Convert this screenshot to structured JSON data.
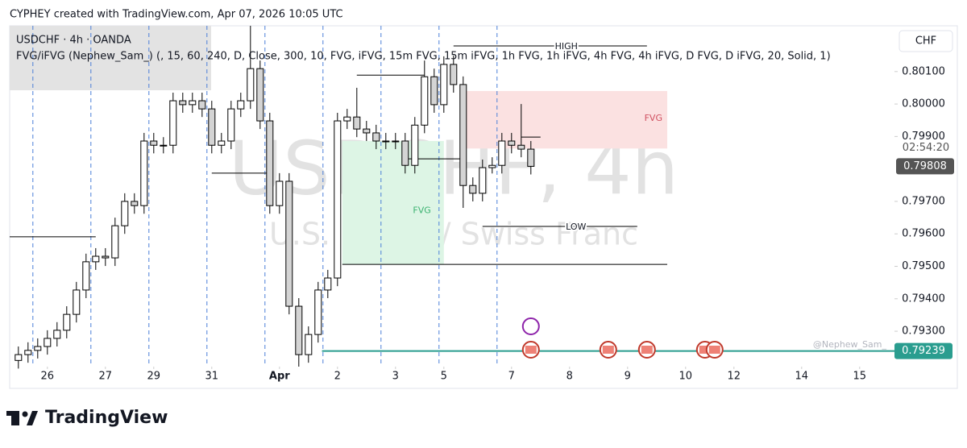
{
  "chart_data": {
    "type": "candlestick",
    "header": "CYPHEY created with TradingView.com, Apr 07, 2026 10:05 UTC",
    "title": "USDCHF · 4h · OANDA",
    "subtitle": "FVG/iFVG (Nephew_Sam_) (, 15, 60, 240, D, Close, 300, 10, FVG, iFVG, 15m FVG, 15m iFVG, 1h FVG, 1h iFVG, 4h FVG, 4h iFVG, D FVG, D iFVG, 20, Solid, 1)",
    "currency": "CHF",
    "watermark": "USDCHF, 4h",
    "watermark_subtitle": "U.S. Dollar / Swiss Franc",
    "credit": "@Nephew_Sam_",
    "logo": "TradingView",
    "up_color": "#ffffff",
    "down_color": "#d4d4d4",
    "x": [
      0,
      1,
      2,
      3,
      4,
      5,
      6,
      7,
      8,
      9,
      10,
      11,
      12,
      13,
      14,
      15,
      16,
      17,
      18,
      19,
      20,
      21,
      22,
      23,
      24,
      25,
      26,
      27,
      28,
      29,
      30,
      31,
      32,
      33,
      34,
      35,
      36,
      37,
      38,
      39,
      40,
      41,
      42,
      43,
      44,
      45,
      46,
      47,
      48,
      49,
      50,
      51,
      52,
      53
    ],
    "open": [
      0.7921,
      0.79228,
      0.79241,
      0.79253,
      0.79278,
      0.79303,
      0.79352,
      0.79427,
      0.79514,
      0.79531,
      0.79526,
      0.79625,
      0.797,
      0.79687,
      0.79886,
      0.79873,
      0.79873,
      0.8001,
      0.79998,
      0.8001,
      0.79985,
      0.79873,
      0.79886,
      0.79985,
      0.8001,
      0.80109,
      0.79948,
      0.79687,
      0.79762,
      0.79377,
      0.79228,
      0.7929,
      0.79427,
      0.79464,
      0.79948,
      0.7996,
      0.79923,
      0.79911,
      0.79886,
      0.79886,
      0.79886,
      0.79811,
      0.79935,
      0.80084,
      0.79998,
      0.80122,
      0.8006,
      0.79749,
      0.79725,
      0.79804,
      0.79811,
      0.79886,
      0.79873,
      0.79861
    ],
    "high": [
      0.79253,
      0.79266,
      0.79278,
      0.79303,
      0.79328,
      0.79377,
      0.79452,
      0.79539,
      0.79556,
      0.79556,
      0.7965,
      0.79725,
      0.79725,
      0.79911,
      0.79911,
      0.79898,
      0.80035,
      0.80035,
      0.80035,
      0.80035,
      0.8001,
      0.79911,
      0.8001,
      0.80035,
      0.80241,
      0.80134,
      0.79973,
      0.79787,
      0.79787,
      0.79402,
      0.79315,
      0.79452,
      0.79489,
      0.79973,
      0.79985,
      0.8005,
      0.79948,
      0.79936,
      0.79911,
      0.79911,
      0.79911,
      0.7996,
      0.80134,
      0.80109,
      0.80147,
      0.8015,
      0.80085,
      0.79774,
      0.79829,
      0.79836,
      0.79911,
      0.79911,
      0.8,
      0.79886
    ],
    "low": [
      0.79185,
      0.79203,
      0.79216,
      0.79228,
      0.79253,
      0.79278,
      0.79327,
      0.79402,
      0.79489,
      0.79501,
      0.79501,
      0.796,
      0.79662,
      0.79662,
      0.79848,
      0.79848,
      0.79848,
      0.79973,
      0.79973,
      0.7996,
      0.79848,
      0.79848,
      0.79861,
      0.7996,
      0.79985,
      0.79923,
      0.79662,
      0.79662,
      0.79352,
      0.79191,
      0.79203,
      0.79265,
      0.79402,
      0.79439,
      0.79923,
      0.79898,
      0.79886,
      0.79861,
      0.79861,
      0.79861,
      0.79786,
      0.79786,
      0.7991,
      0.79973,
      0.79973,
      0.80035,
      0.7968,
      0.797,
      0.797,
      0.79786,
      0.79786,
      0.79848,
      0.79836,
      0.79783
    ],
    "close": [
      0.79228,
      0.79241,
      0.79253,
      0.79278,
      0.79303,
      0.79352,
      0.79427,
      0.79514,
      0.79531,
      0.79526,
      0.79625,
      0.797,
      0.79687,
      0.79886,
      0.79873,
      0.79873,
      0.8001,
      0.79998,
      0.8001,
      0.79985,
      0.79873,
      0.79886,
      0.79985,
      0.8001,
      0.80109,
      0.79948,
      0.79687,
      0.79762,
      0.79377,
      0.79228,
      0.7929,
      0.79427,
      0.79464,
      0.79948,
      0.7996,
      0.79923,
      0.79911,
      0.79886,
      0.79886,
      0.79886,
      0.79811,
      0.79935,
      0.80084,
      0.79998,
      0.80122,
      0.8006,
      0.79749,
      0.79725,
      0.79804,
      0.79811,
      0.79886,
      0.79873,
      0.79861,
      0.79808
    ],
    "xlim": [
      -0.9,
      90.6
    ],
    "xticks": [
      {
        "value": 3,
        "label": "26"
      },
      {
        "value": 9,
        "label": "27"
      },
      {
        "value": 14,
        "label": "29"
      },
      {
        "value": 20,
        "label": "31"
      },
      {
        "value": 27,
        "label": "Apr"
      },
      {
        "value": 33,
        "label": "2"
      },
      {
        "value": 39,
        "label": "3"
      },
      {
        "value": 44,
        "label": "5"
      },
      {
        "value": 51,
        "label": "7"
      },
      {
        "value": 57,
        "label": "8"
      },
      {
        "value": 63,
        "label": "9"
      },
      {
        "value": 69,
        "label": "10"
      },
      {
        "value": 74,
        "label": "12"
      },
      {
        "value": 81,
        "label": "14"
      },
      {
        "value": 87,
        "label": "15"
      }
    ],
    "ylim": [
      0.79191,
      0.80241
    ],
    "yticks": [
      {
        "value": 0.793,
        "label": "0.79300"
      },
      {
        "value": 0.794,
        "label": "0.79400"
      },
      {
        "value": 0.795,
        "label": "0.79500"
      },
      {
        "value": 0.796,
        "label": "0.79600"
      },
      {
        "value": 0.797,
        "label": "0.79700"
      },
      {
        "value": 0.799,
        "label": "0.79900"
      },
      {
        "value": 0.8,
        "label": "0.80000"
      },
      {
        "value": 0.801,
        "label": "0.80100"
      }
    ],
    "session_breaks": [
      1.5,
      7.5,
      13.5,
      19.5,
      25.5,
      31.5,
      37.5,
      43.5,
      49.5
    ],
    "last_price": {
      "value": 0.79808,
      "label": "0.79808"
    },
    "countdown": "02:54:20",
    "hline": {
      "value": 0.79239,
      "label": "0.79239",
      "start": 31.4,
      "color": "#2a9d8f"
    },
    "zones": [
      {
        "label": "FVG",
        "x": [
          46.3,
          67.1
        ],
        "y": [
          0.79863,
          0.8004
        ],
        "color": "#fbe1e1",
        "text_color": "#d05060"
      },
      {
        "label": "FVG",
        "x": [
          33.5,
          44
        ],
        "y": [
          0.79506,
          0.79886
        ],
        "color": "#ddf5e5",
        "text_color": "#3cb371"
      }
    ],
    "levels": [
      {
        "label": "HIGH",
        "value": 0.80179,
        "x": [
          45,
          65
        ]
      },
      {
        "label": "LOW",
        "value": 0.79623,
        "x": [
          48,
          64
        ]
      },
      {
        "value": 0.79506,
        "x": [
          33.5,
          67.1
        ]
      },
      {
        "value": 0.79591,
        "x": [
          -0.9,
          8
        ]
      },
      {
        "value": 0.80089,
        "x": [
          35,
          42
        ]
      },
      {
        "value": 0.79787,
        "x": [
          20,
          26
        ]
      },
      {
        "value": 0.79831,
        "x": [
          40,
          46
        ]
      },
      {
        "value": 0.79898,
        "x": [
          52,
          54
        ]
      }
    ],
    "events": [
      53,
      61,
      65,
      71,
      72
    ]
  }
}
